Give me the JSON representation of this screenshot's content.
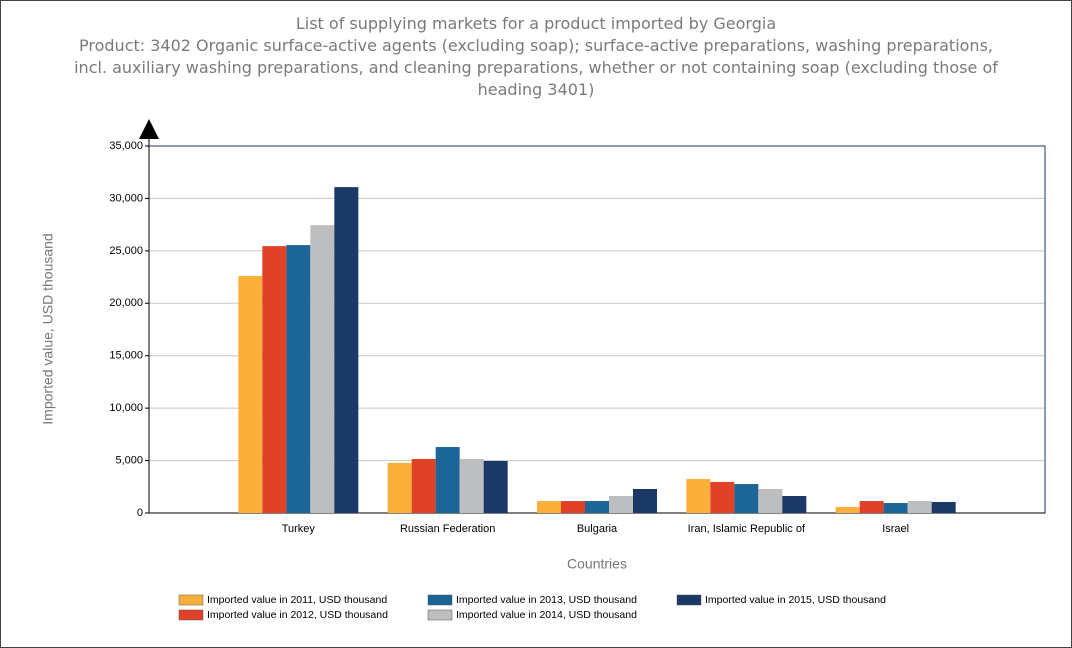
{
  "chart_data": {
    "type": "bar",
    "title": "List of supplying markets for a product imported by Georgia",
    "subtitle": "Product: 3402 Organic surface-active agents (excluding soap); surface-active preparations, washing preparations, incl. auxiliary washing preparations, and cleaning preparations, whether or not containing soap (excluding those of heading 3401)",
    "x_label": "Countries",
    "y_label": "Imported value, USD thousand",
    "categories": [
      "Turkey",
      "Russian Federation",
      "Bulgaria",
      "Iran, Islamic Republic of",
      "Israel"
    ],
    "series": [
      {
        "name": "Imported value in 2011, USD thousand",
        "color": "#fbb03b",
        "values": [
          22600,
          4770,
          1140,
          3240,
          570
        ]
      },
      {
        "name": "Imported value in 2012, USD thousand",
        "color": "#e04127",
        "values": [
          25450,
          5150,
          1140,
          2960,
          1140
        ]
      },
      {
        "name": "Imported value in 2013, USD thousand",
        "color": "#1b6597",
        "values": [
          25550,
          6290,
          1140,
          2760,
          950
        ]
      },
      {
        "name": "Imported value in 2014, USD thousand",
        "color": "#bcbec0",
        "values": [
          27450,
          5150,
          1620,
          2290,
          1140
        ]
      },
      {
        "name": "Imported value in 2015, USD thousand",
        "color": "#1b3966",
        "values": [
          31080,
          4960,
          2290,
          1620,
          1050
        ]
      }
    ],
    "ylim": [
      0,
      35000
    ],
    "yticks": [
      0,
      {
        "value": 5000,
        "label": "5,000"
      },
      {
        "value": 10000,
        "label": "10,000"
      },
      {
        "value": 15000,
        "label": "15,000"
      },
      {
        "value": 20000,
        "label": "20,000"
      },
      {
        "value": 25000,
        "label": "25,000"
      },
      {
        "value": 30000,
        "label": "30,000"
      },
      {
        "value": 35000,
        "label": "35,000"
      }
    ],
    "grid": true,
    "legend": "bottom"
  }
}
